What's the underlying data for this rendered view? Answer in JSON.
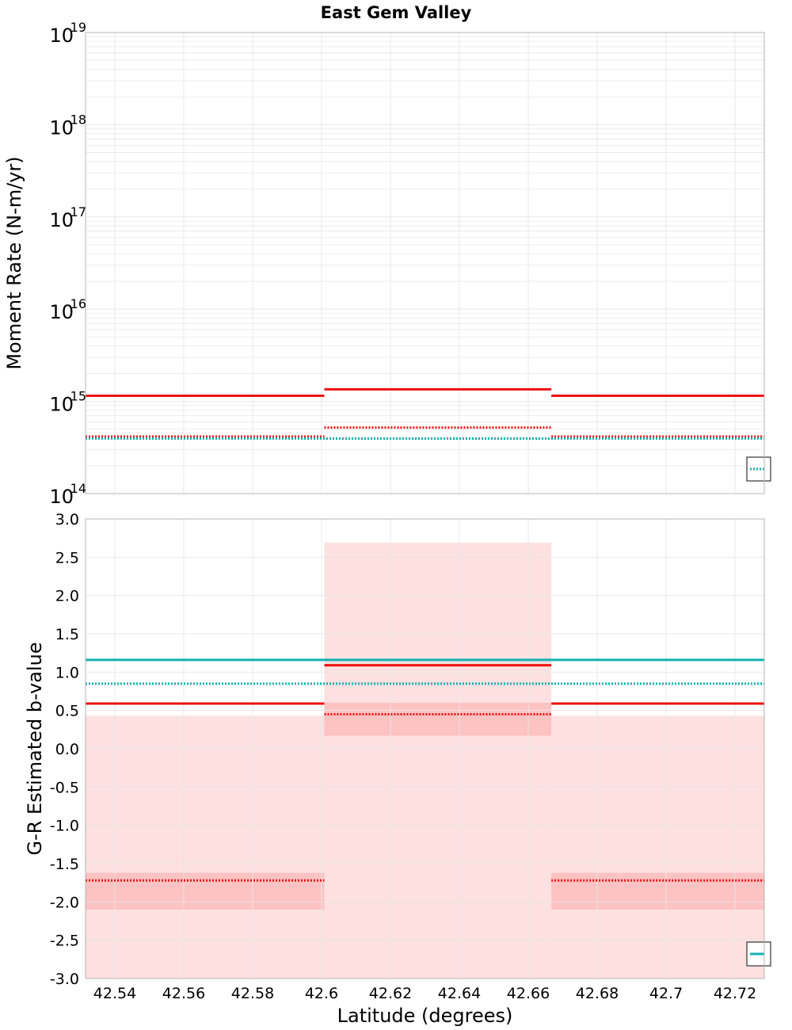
{
  "title": "East Gem Valley",
  "colors": {
    "red": "#ee1111",
    "teal": "#14b0b0",
    "band_light": "#fde0e0",
    "band_dark": "#fdc2c2",
    "grid": "#e8e8e8",
    "frame": "#b4b4b4"
  },
  "chart_data": [
    {
      "type": "line",
      "panel": "top",
      "ylabel": "Moment Rate (N-m/yr)",
      "yscale": "log",
      "ylim": [
        100000000000000.0,
        1e+19
      ],
      "xlim": [
        42.5315,
        42.7285
      ],
      "ytick_exponents": [
        "14",
        "15",
        "16",
        "17",
        "18",
        "19"
      ],
      "ytick_base": "10",
      "series": [
        {
          "name": "red solid",
          "color": "red",
          "style": "solid",
          "segments": [
            {
              "x": [
                42.5315,
                42.6008
              ],
              "y": 1150000000000000.0
            },
            {
              "x": [
                42.6008,
                42.6667
              ],
              "y": 1350000000000000.0
            },
            {
              "x": [
                42.6667,
                42.7285
              ],
              "y": 1150000000000000.0
            }
          ]
        },
        {
          "name": "red dotted",
          "color": "red",
          "style": "dotted",
          "segments": [
            {
              "x": [
                42.5315,
                42.6008
              ],
              "y": 415000000000000.0
            },
            {
              "x": [
                42.6008,
                42.6667
              ],
              "y": 520000000000000.0
            },
            {
              "x": [
                42.6667,
                42.7285
              ],
              "y": 415000000000000.0
            }
          ]
        },
        {
          "name": "teal dotted",
          "color": "teal",
          "style": "dotted",
          "segments": [
            {
              "x": [
                42.5315,
                42.7285
              ],
              "y": 395000000000000.0
            }
          ]
        }
      ],
      "legend": {
        "placement": "bottom-right",
        "sample_color": "teal",
        "sample_style": "dotted"
      }
    },
    {
      "type": "line",
      "panel": "bottom",
      "ylabel": "G-R Estimated b-value",
      "xlabel": "Latitude (degrees)",
      "ylim": [
        -3.0,
        3.0
      ],
      "xlim": [
        42.5315,
        42.7285
      ],
      "yticks": [
        "3.0",
        "2.5",
        "2.0",
        "1.5",
        "1.0",
        "0.5",
        "0.0",
        "-0.5",
        "-1.0",
        "-1.5",
        "-2.0",
        "-2.5",
        "-3.0"
      ],
      "xticks": [
        "42.54",
        "42.56",
        "42.58",
        "42.6",
        "42.62",
        "42.64",
        "42.66",
        "42.68",
        "42.7",
        "42.72"
      ],
      "bands": [
        {
          "x": [
            42.5315,
            42.6008
          ],
          "y": [
            -3.0,
            0.43
          ],
          "shade": "band_light"
        },
        {
          "x": [
            42.6008,
            42.6667
          ],
          "y": [
            -3.0,
            2.69
          ],
          "shade": "band_light"
        },
        {
          "x": [
            42.6667,
            42.7285
          ],
          "y": [
            -3.0,
            0.43
          ],
          "shade": "band_light"
        },
        {
          "x": [
            42.5315,
            42.6008
          ],
          "y": [
            -2.1,
            -1.62
          ],
          "shade": "band_dark"
        },
        {
          "x": [
            42.6008,
            42.6667
          ],
          "y": [
            0.17,
            0.6
          ],
          "shade": "band_dark"
        },
        {
          "x": [
            42.6667,
            42.7285
          ],
          "y": [
            -2.1,
            -1.62
          ],
          "shade": "band_dark"
        }
      ],
      "series": [
        {
          "name": "teal solid",
          "color": "teal",
          "style": "solid",
          "segments": [
            {
              "x": [
                42.5315,
                42.7285
              ],
              "y": 1.16
            }
          ]
        },
        {
          "name": "teal dotted",
          "color": "teal",
          "style": "dotted",
          "segments": [
            {
              "x": [
                42.5315,
                42.7285
              ],
              "y": 0.85
            }
          ]
        },
        {
          "name": "red solid",
          "color": "red",
          "style": "solid",
          "segments": [
            {
              "x": [
                42.5315,
                42.6008
              ],
              "y": 0.59
            },
            {
              "x": [
                42.6008,
                42.6667
              ],
              "y": 1.09
            },
            {
              "x": [
                42.6667,
                42.7285
              ],
              "y": 0.59
            }
          ]
        },
        {
          "name": "red dotted",
          "color": "red",
          "style": "dotted",
          "segments": [
            {
              "x": [
                42.5315,
                42.6008
              ],
              "y": -1.72
            },
            {
              "x": [
                42.6008,
                42.6667
              ],
              "y": 0.45
            },
            {
              "x": [
                42.6667,
                42.7285
              ],
              "y": -1.72
            }
          ]
        }
      ],
      "legend": {
        "placement": "bottom-right",
        "sample_color": "teal",
        "sample_style": "solid"
      }
    }
  ]
}
